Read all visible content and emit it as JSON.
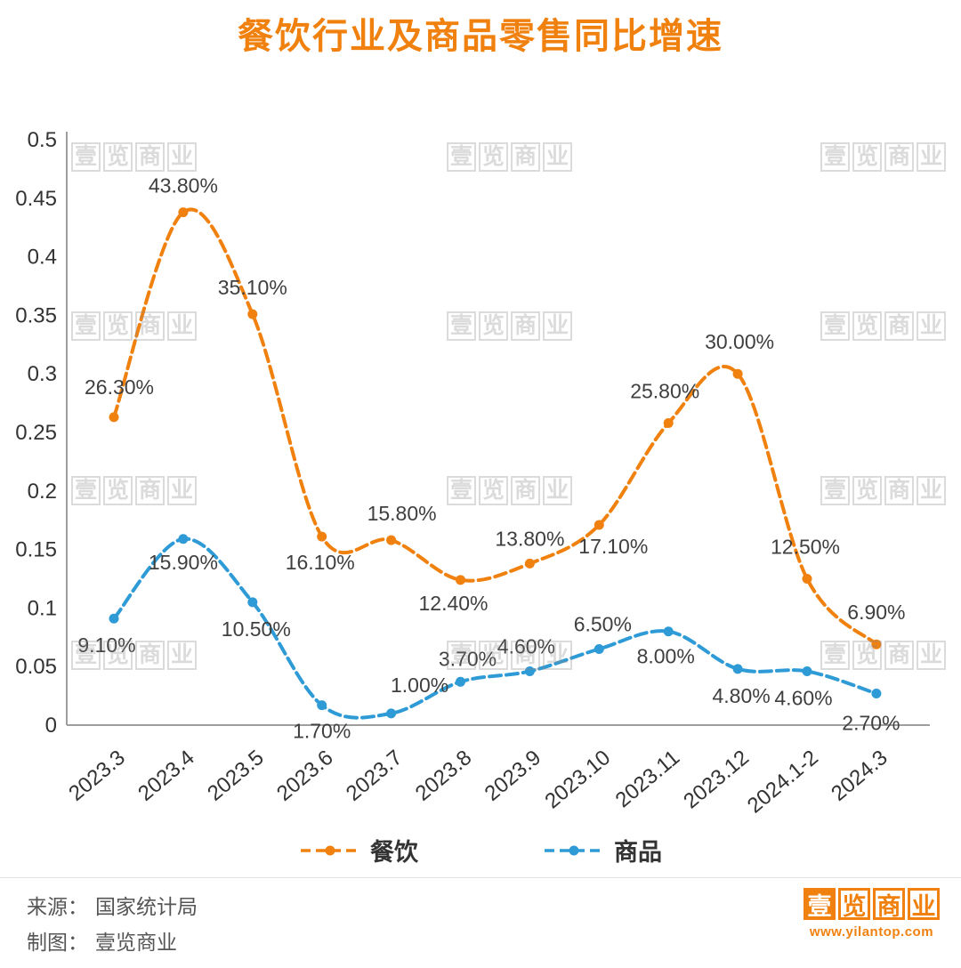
{
  "page": {
    "title": "餐饮行业及商品零售同比增速"
  },
  "chart_data": {
    "type": "line",
    "title": "餐饮行业及商品零售同比增速",
    "categories": [
      "2023.3",
      "2023.4",
      "2023.5",
      "2023.6",
      "2023.7",
      "2023.8",
      "2023.9",
      "2023.10",
      "2023.11",
      "2023.12",
      "2024.1-2",
      "2024.3"
    ],
    "series": [
      {
        "name": "餐饮",
        "color": "#f0810f",
        "values": [
          0.263,
          0.438,
          0.351,
          0.161,
          0.158,
          0.124,
          0.138,
          0.171,
          0.258,
          0.3,
          0.125,
          0.069
        ],
        "labels": [
          "26.30%",
          "43.80%",
          "35.10%",
          "16.10%",
          "15.80%",
          "12.40%",
          "13.80%",
          "17.10%",
          "25.80%",
          "30.00%",
          "12.50%",
          "6.90%"
        ],
        "label_offsets": [
          [
            6,
            -26
          ],
          [
            0,
            -22
          ],
          [
            0,
            -22
          ],
          [
            -2,
            37
          ],
          [
            12,
            -22
          ],
          [
            -8,
            34
          ],
          [
            0,
            -20
          ],
          [
            16,
            32
          ],
          [
            -4,
            -28
          ],
          [
            2,
            -28
          ],
          [
            -2,
            -28
          ],
          [
            0,
            -28
          ]
        ]
      },
      {
        "name": "商品",
        "color": "#2e9bd6",
        "values": [
          0.091,
          0.159,
          0.105,
          0.017,
          0.01,
          0.037,
          0.046,
          0.065,
          0.08,
          0.048,
          0.046,
          0.027
        ],
        "labels": [
          "9.10%",
          "15.90%",
          "10.50%",
          "1.70%",
          "1.00%",
          "3.70%",
          "4.60%",
          "6.50%",
          "8.00%",
          "4.80%",
          "4.60%",
          "2.70%"
        ],
        "label_offsets": [
          [
            -8,
            38
          ],
          [
            0,
            34
          ],
          [
            4,
            38
          ],
          [
            0,
            37
          ],
          [
            32,
            -24
          ],
          [
            8,
            -18
          ],
          [
            -4,
            -20
          ],
          [
            4,
            -20
          ],
          [
            -3,
            36
          ],
          [
            4,
            38
          ],
          [
            -4,
            38
          ],
          [
            -6,
            41
          ]
        ]
      }
    ],
    "ylim": [
      0,
      0.5
    ],
    "y_ticks": [
      "0",
      "0.05",
      "0.1",
      "0.15",
      "0.2",
      "0.25",
      "0.3",
      "0.35",
      "0.4",
      "0.45",
      "0.5"
    ],
    "grid": false,
    "legend_position": "bottom"
  },
  "footer": {
    "source_label": "来源：",
    "source_value": "国家统计局",
    "maker_label": "制图：",
    "maker_value": "壹览商业"
  },
  "logo": {
    "text": "壹览商业",
    "url": "www.yilantop.com"
  },
  "watermark": {
    "text": "壹览商业"
  },
  "colors": {
    "orange": "#f0810f",
    "blue": "#2e9bd6",
    "axis": "#9e9e9e",
    "label": "#3f3f3f"
  }
}
